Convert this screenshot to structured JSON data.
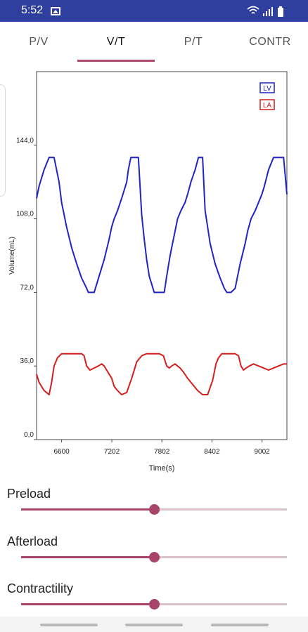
{
  "status_bar": {
    "time": "5:52",
    "icons": [
      "image-icon",
      "wifi-icon",
      "signal-icon",
      "battery-icon"
    ],
    "color": "#2f3f9f"
  },
  "tabs": [
    {
      "label": "P/V",
      "active": false
    },
    {
      "label": "V/T",
      "active": true
    },
    {
      "label": "P/T",
      "active": false
    },
    {
      "label": "CONTR",
      "active": false
    }
  ],
  "accent_color": "#a8446a",
  "chart_data": {
    "type": "line",
    "xlabel": "Time(s)",
    "ylabel": "Volume(mL)",
    "xlim": [
      6300,
      9300
    ],
    "ylim": [
      0,
      180
    ],
    "x_ticks": [
      "6600",
      "7202",
      "7802",
      "8402",
      "9002"
    ],
    "y_ticks": [
      "0,0",
      "36,0",
      "72,0",
      "108,0",
      "144,0"
    ],
    "grid": false,
    "legend_position": "top-right",
    "series": [
      {
        "name": "LV",
        "color": "#1f24c4",
        "x": [
          6300,
          6330,
          6390,
          6450,
          6510,
          6570,
          6600,
          6660,
          6720,
          6780,
          6840,
          6900,
          6920,
          6950,
          6990,
          7050,
          7110,
          7170,
          7200,
          7230,
          7270,
          7320,
          7380,
          7400,
          7430,
          7470,
          7520,
          7560,
          7590,
          7620,
          7650,
          7710,
          7770,
          7830,
          7860,
          7900,
          7930,
          7960,
          7990,
          8030,
          8080,
          8110,
          8150,
          8200,
          8240,
          8260,
          8290,
          8320,
          8380,
          8440,
          8500,
          8550,
          8580,
          8600,
          8630,
          8680,
          8740,
          8800,
          8830,
          8870,
          8920,
          8960,
          9000,
          9030,
          9080,
          9140,
          9200,
          9260,
          9300
        ],
        "y": [
          118,
          124,
          132,
          138,
          138,
          126,
          116,
          104,
          94,
          86,
          79,
          74,
          72,
          72,
          72,
          80,
          88,
          98,
          104,
          108,
          112,
          118,
          126,
          132,
          138,
          138,
          138,
          110,
          98,
          88,
          80,
          72,
          72,
          72,
          80,
          90,
          96,
          102,
          108,
          112,
          116,
          120,
          126,
          132,
          138,
          138,
          138,
          112,
          96,
          86,
          79,
          74,
          72,
          72,
          72,
          74,
          86,
          96,
          102,
          108,
          112,
          116,
          120,
          124,
          132,
          138,
          138,
          138,
          120
        ]
      },
      {
        "name": "LA",
        "color": "#d41f1f",
        "x": [
          6300,
          6330,
          6360,
          6390,
          6420,
          6450,
          6480,
          6510,
          6550,
          6600,
          6660,
          6720,
          6780,
          6840,
          6870,
          6900,
          6940,
          6990,
          7040,
          7080,
          7110,
          7140,
          7170,
          7200,
          7230,
          7270,
          7320,
          7380,
          7440,
          7500,
          7560,
          7620,
          7650,
          7680,
          7720,
          7770,
          7820,
          7860,
          7890,
          7920,
          7960,
          7990,
          8020,
          8060,
          8110,
          8170,
          8230,
          8290,
          8350,
          8410,
          8450,
          8480,
          8520,
          8560,
          8610,
          8650,
          8680,
          8720,
          8750,
          8780,
          8810,
          8850,
          8900,
          8960,
          9020,
          9080,
          9140,
          9200,
          9260,
          9300
        ],
        "y": [
          32,
          28,
          26,
          24,
          23,
          22,
          28,
          36,
          40,
          42,
          42,
          42,
          42,
          42,
          41,
          36,
          34,
          35,
          36,
          37,
          36,
          34,
          32,
          30,
          26,
          24,
          22,
          23,
          30,
          38,
          41,
          42,
          42,
          42,
          42,
          42,
          41,
          36,
          35,
          36,
          37,
          36,
          35,
          33,
          30,
          27,
          24,
          22,
          22,
          29,
          37,
          40,
          42,
          42,
          42,
          42,
          42,
          41,
          36,
          34,
          35,
          36,
          37,
          36,
          35,
          34,
          35,
          36,
          37,
          37
        ]
      }
    ]
  },
  "sliders": [
    {
      "label": "Preload",
      "value": 0.5
    },
    {
      "label": "Afterload",
      "value": 0.5
    },
    {
      "label": "Contractility",
      "value": 0.5
    }
  ]
}
